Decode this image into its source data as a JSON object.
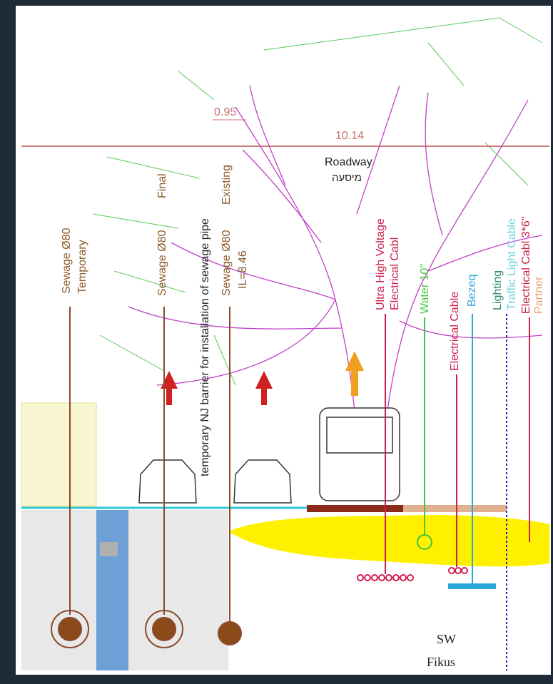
{
  "dimensions": {
    "offset": "0.95",
    "level": "10.14"
  },
  "roadway": {
    "label": "Roadway",
    "hebrew": "מיסעה"
  },
  "sewage": [
    {
      "label": "Sewage Ø80",
      "note": "Temporary"
    },
    {
      "label": "Sewage Ø80",
      "note": "Final"
    },
    {
      "label": "Sewage Ø80",
      "note": "Existing",
      "level": "IL=8.46"
    }
  ],
  "barrier": "temporary NJ barrier for installation of sewage pipe",
  "utilities": [
    {
      "label": "Ultra High Voltage"
    },
    {
      "label": "Electrical Cabl"
    },
    {
      "label": "Water 10\""
    },
    {
      "label": "Electrical Cable"
    },
    {
      "label": "Bezeq"
    },
    {
      "label": "Lighting"
    },
    {
      "label": "Traffic Light Cable"
    },
    {
      "label": "Electrical Cabl 3*6\""
    },
    {
      "label": "Partner"
    }
  ],
  "tree": {
    "type": "SW",
    "name": "Fikus"
  }
}
